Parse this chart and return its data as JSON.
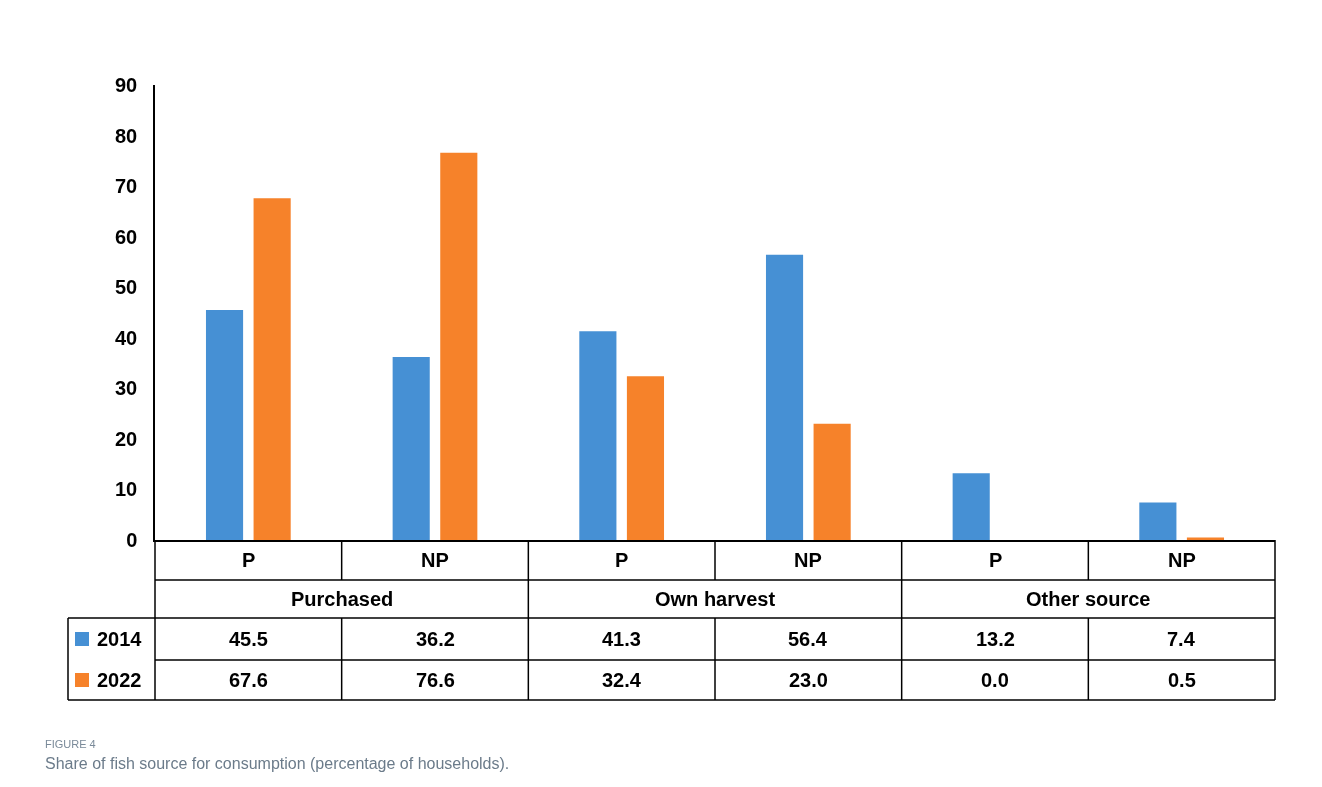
{
  "chart_data": {
    "type": "bar",
    "categories": [
      "P",
      "NP",
      "P",
      "NP",
      "P",
      "NP"
    ],
    "series": [
      {
        "name": "2014",
        "color": "#4690d4",
        "values": [
          45.5,
          36.2,
          41.3,
          56.4,
          13.2,
          7.4
        ],
        "value_labels": [
          "45.5",
          "36.2",
          "41.3",
          "56.4",
          "13.2",
          "7.4"
        ]
      },
      {
        "name": "2022",
        "color": "#f6822a",
        "values": [
          67.6,
          76.6,
          32.4,
          23.0,
          0.0,
          0.5
        ],
        "value_labels": [
          "67.6",
          "76.6",
          "32.4",
          "23.0",
          "0.0",
          "0.5"
        ]
      }
    ],
    "ylim": [
      0,
      90
    ],
    "yticks": [
      0,
      10,
      20,
      30,
      40,
      50,
      60,
      70,
      80,
      90
    ],
    "legend": "bottom left",
    "annotations": [
      "Purchased",
      "Own harvest",
      "Other source",
      "FIGURE 4",
      "Share of fish source for consumption (percentage of households)."
    ]
  }
}
